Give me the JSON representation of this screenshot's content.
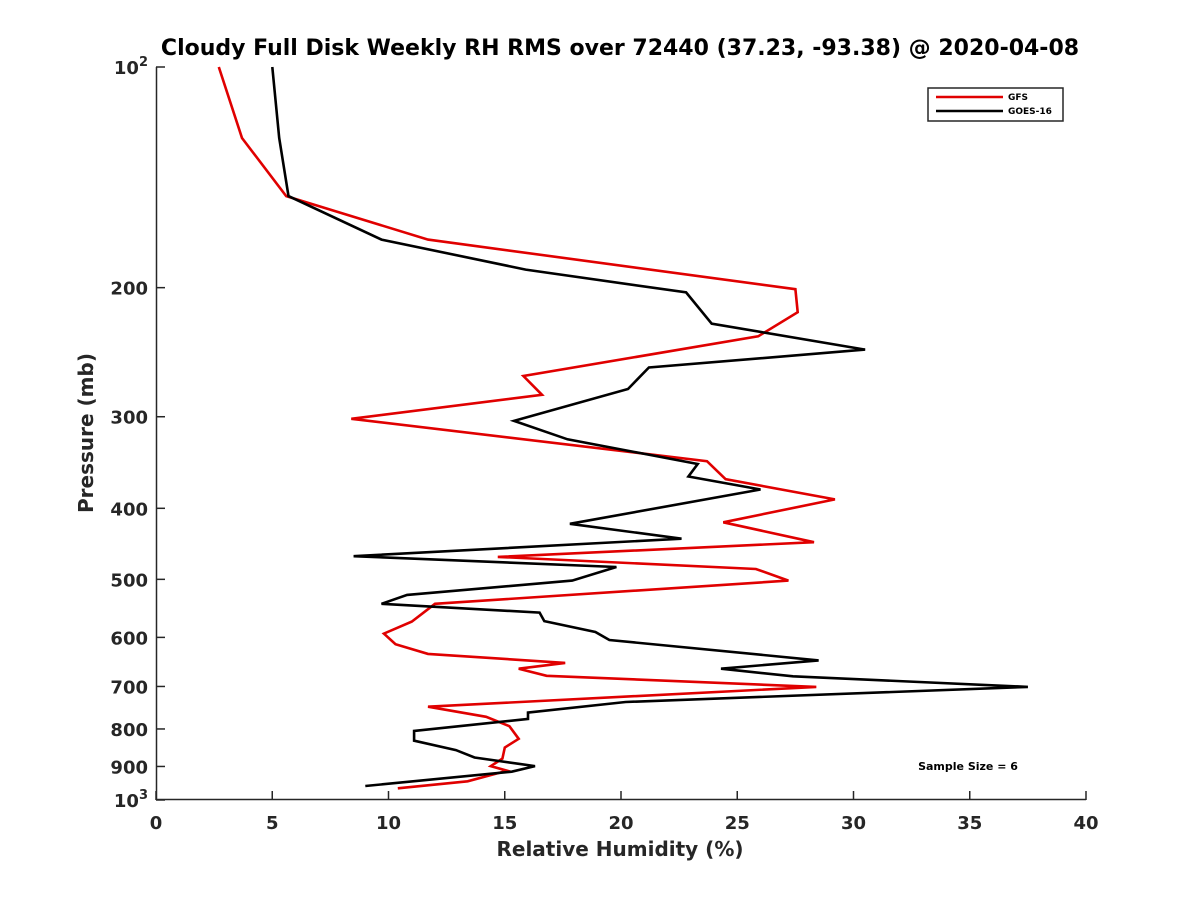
{
  "chart_data": {
    "type": "line",
    "title": "Cloudy Full Disk Weekly RH RMS over 72440 (37.23, -93.38) @ 2020-04-08",
    "xlabel": "Relative Humidity (%)",
    "ylabel": "Pressure (mb)",
    "xlim": [
      0,
      40
    ],
    "ylim": [
      100,
      1000
    ],
    "y_scale": "log",
    "y_reversed": true,
    "grid": false,
    "legend_position": "top-right",
    "x_ticks": [
      "0",
      "5",
      "10",
      "15",
      "20",
      "25",
      "30",
      "35",
      "40"
    ],
    "y_ticks": [
      {
        "value": 100,
        "base": "10",
        "exp": "2",
        "label": ""
      },
      {
        "value": 200,
        "base": "",
        "exp": "",
        "label": "200"
      },
      {
        "value": 300,
        "base": "",
        "exp": "",
        "label": "300"
      },
      {
        "value": 400,
        "base": "",
        "exp": "",
        "label": "400"
      },
      {
        "value": 500,
        "base": "",
        "exp": "",
        "label": "500"
      },
      {
        "value": 600,
        "base": "",
        "exp": "",
        "label": "600"
      },
      {
        "value": 700,
        "base": "",
        "exp": "",
        "label": "700"
      },
      {
        "value": 800,
        "base": "",
        "exp": "",
        "label": "800"
      },
      {
        "value": 900,
        "base": "",
        "exp": "",
        "label": "900"
      },
      {
        "value": 1000,
        "base": "10",
        "exp": "3",
        "label": ""
      }
    ],
    "annotation": "Sample Size = 6",
    "series": [
      {
        "name": "GFS",
        "color": "#e00000",
        "points": [
          [
            2.7,
            100
          ],
          [
            3.7,
            125
          ],
          [
            5.6,
            150
          ],
          [
            11.7,
            172
          ],
          [
            27.5,
            201
          ],
          [
            27.6,
            216
          ],
          [
            25.9,
            233
          ],
          [
            15.8,
            264
          ],
          [
            16.6,
            280
          ],
          [
            8.4,
            302
          ],
          [
            23.7,
            345
          ],
          [
            24.5,
            365
          ],
          [
            29.2,
            389
          ],
          [
            24.4,
            418
          ],
          [
            28.3,
            445
          ],
          [
            14.7,
            466
          ],
          [
            25.8,
            484
          ],
          [
            27.2,
            502
          ],
          [
            12.0,
            540
          ],
          [
            11.0,
            571
          ],
          [
            9.8,
            593
          ],
          [
            10.3,
            613
          ],
          [
            11.7,
            632
          ],
          [
            17.6,
            650
          ],
          [
            15.6,
            662
          ],
          [
            16.8,
            677
          ],
          [
            28.4,
            701
          ],
          [
            11.7,
            746
          ],
          [
            14.2,
            770
          ],
          [
            15.2,
            793
          ],
          [
            15.6,
            825
          ],
          [
            15.0,
            848
          ],
          [
            14.9,
            878
          ],
          [
            14.4,
            899
          ],
          [
            15.1,
            912
          ],
          [
            13.4,
            943
          ],
          [
            10.4,
            964
          ]
        ]
      },
      {
        "name": "GOES-16",
        "color": "#000000",
        "points": [
          [
            5.0,
            100
          ],
          [
            5.3,
            125
          ],
          [
            5.7,
            150
          ],
          [
            9.7,
            172
          ],
          [
            15.9,
            189
          ],
          [
            22.8,
            203
          ],
          [
            23.9,
            224
          ],
          [
            30.5,
            243
          ],
          [
            21.2,
            257
          ],
          [
            20.3,
            275
          ],
          [
            15.4,
            304
          ],
          [
            17.7,
            322
          ],
          [
            23.3,
            348
          ],
          [
            22.9,
            362
          ],
          [
            26.0,
            377
          ],
          [
            17.8,
            420
          ],
          [
            22.6,
            440
          ],
          [
            8.5,
            465
          ],
          [
            19.8,
            481
          ],
          [
            17.9,
            502
          ],
          [
            10.8,
            525
          ],
          [
            9.7,
            540
          ],
          [
            16.5,
            555
          ],
          [
            16.7,
            570
          ],
          [
            18.9,
            590
          ],
          [
            19.5,
            605
          ],
          [
            28.5,
            645
          ],
          [
            24.3,
            662
          ],
          [
            27.4,
            678
          ],
          [
            37.5,
            701
          ],
          [
            20.2,
            735
          ],
          [
            16.0,
            760
          ],
          [
            16.0,
            775
          ],
          [
            11.1,
            805
          ],
          [
            11.1,
            830
          ],
          [
            12.9,
            855
          ],
          [
            13.7,
            875
          ],
          [
            16.3,
            899
          ],
          [
            15.3,
            915
          ],
          [
            9.0,
            957
          ]
        ]
      }
    ]
  }
}
